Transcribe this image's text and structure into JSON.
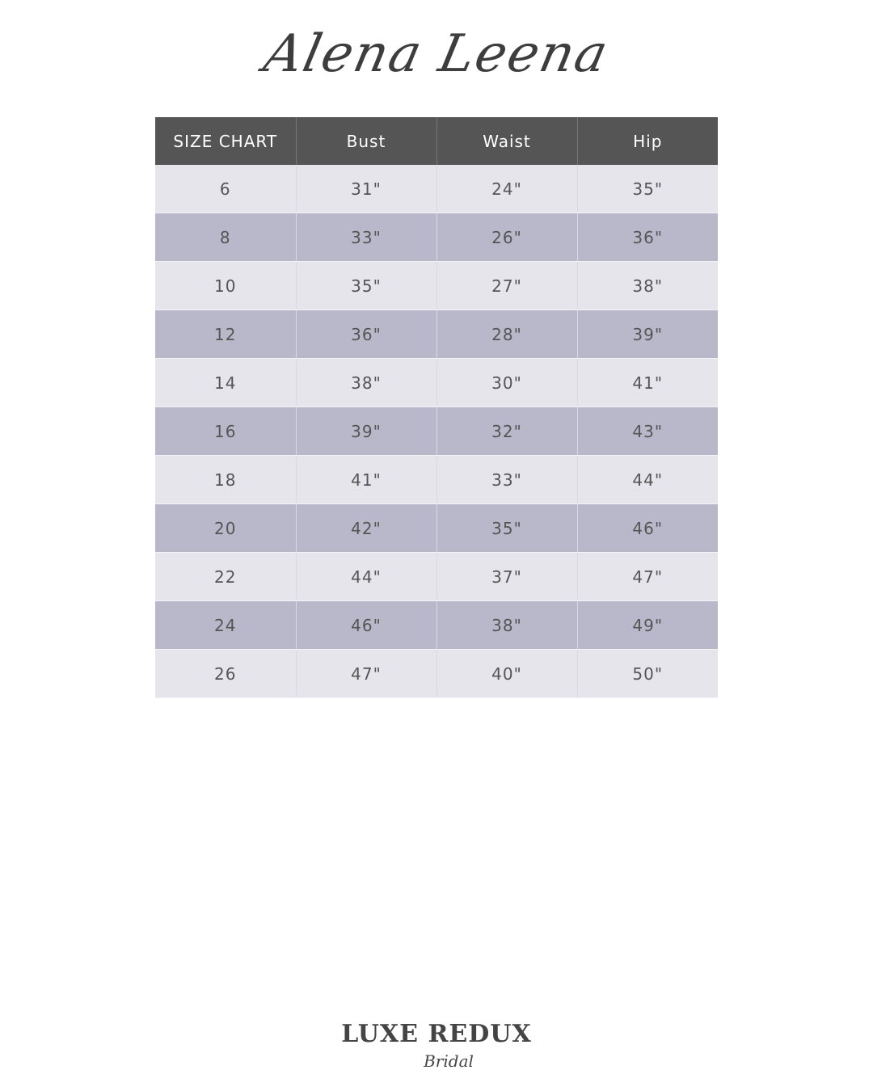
{
  "brand_title": "Alena Leena",
  "table": {
    "headers": [
      "SIZE CHART",
      "Bust",
      "Waist",
      "Hip"
    ],
    "rows": [
      [
        "6",
        "31\"",
        "24\"",
        "35\""
      ],
      [
        "8",
        "33\"",
        "26\"",
        "36\""
      ],
      [
        "10",
        "35\"",
        "27\"",
        "38\""
      ],
      [
        "12",
        "36\"",
        "28\"",
        "39\""
      ],
      [
        "14",
        "38\"",
        "30\"",
        "41\""
      ],
      [
        "16",
        "39\"",
        "32\"",
        "43\""
      ],
      [
        "18",
        "41\"",
        "33\"",
        "44\""
      ],
      [
        "20",
        "42\"",
        "35\"",
        "46\""
      ],
      [
        "22",
        "44\"",
        "37\"",
        "47\""
      ],
      [
        "24",
        "46\"",
        "38\"",
        "49\""
      ],
      [
        "26",
        "47\"",
        "40\"",
        "50\""
      ]
    ]
  },
  "colors": {
    "header": "#555555",
    "row_light": "#e6e5ec",
    "row_dark": "#b9b8cb"
  },
  "logo": {
    "main": "LUXE REDUX",
    "sub": "Bridal"
  }
}
